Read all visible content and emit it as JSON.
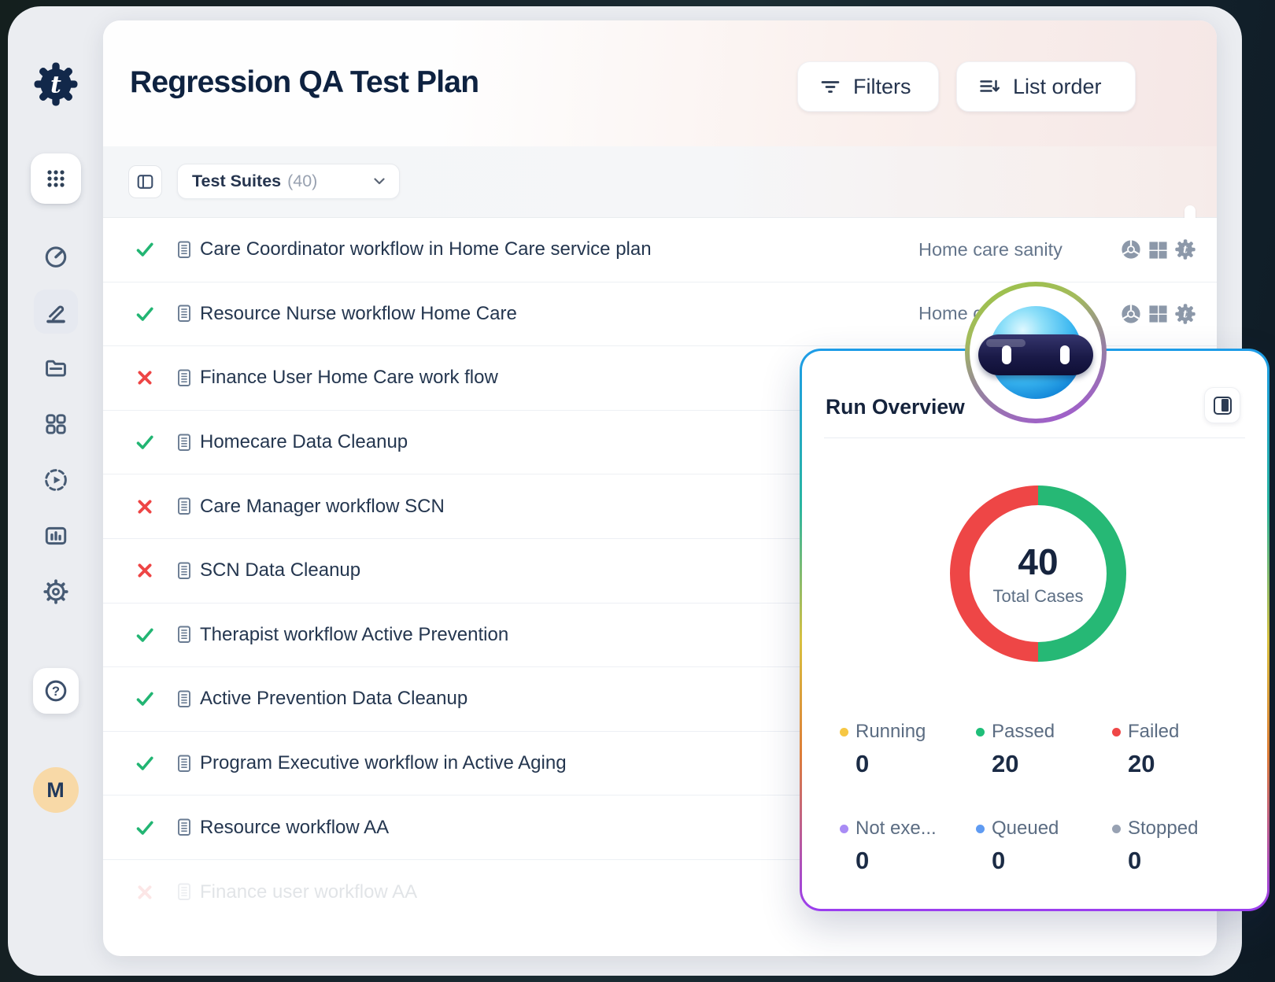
{
  "header": {
    "title": "Regression QA Test Plan",
    "filters_label": "Filters",
    "list_order_label": "List order"
  },
  "toolbar": {
    "suites_label": "Test Suites",
    "suites_count": "(40)"
  },
  "sidebar": {
    "logo_letter": "t",
    "avatar_initial": "M",
    "help_glyph": "?"
  },
  "list": {
    "rows": [
      {
        "status": "passed",
        "title": "Care Coordinator workflow in Home Care service plan",
        "tag": "Home care sanity"
      },
      {
        "status": "passed",
        "title": "Resource Nurse workflow Home Care",
        "tag": "Home care sanity"
      },
      {
        "status": "failed",
        "title": "Finance User Home Care work flow"
      },
      {
        "status": "passed",
        "title": "Homecare Data Cleanup"
      },
      {
        "status": "failed",
        "title": "Care Manager workflow SCN"
      },
      {
        "status": "failed",
        "title": "SCN Data Cleanup"
      },
      {
        "status": "passed",
        "title": "Therapist workflow Active Prevention"
      },
      {
        "status": "passed",
        "title": "Active Prevention Data Cleanup"
      },
      {
        "status": "passed",
        "title": "Program Executive workflow in Active Aging"
      },
      {
        "status": "passed",
        "title": "Resource workflow AA"
      },
      {
        "status": "failed",
        "title": "Finance user workflow AA",
        "ghost": true
      }
    ]
  },
  "run_overview": {
    "title": "Run Overview",
    "total_value": "40",
    "total_label": "Total Cases",
    "legend": [
      {
        "label": "Running",
        "value": "0",
        "color": "#f6c744"
      },
      {
        "label": "Passed",
        "value": "20",
        "color": "#1fbe79"
      },
      {
        "label": "Failed",
        "value": "20",
        "color": "#ef4747"
      },
      {
        "label": "Not exe...",
        "value": "0",
        "color": "#a98cf5"
      },
      {
        "label": "Queued",
        "value": "0",
        "color": "#5f9bf2"
      },
      {
        "label": "Stopped",
        "value": "0",
        "color": "#98a2b3"
      }
    ],
    "donut": {
      "passed": 20,
      "failed": 20,
      "passed_color": "#26b875",
      "failed_color": "#ee4646"
    }
  }
}
